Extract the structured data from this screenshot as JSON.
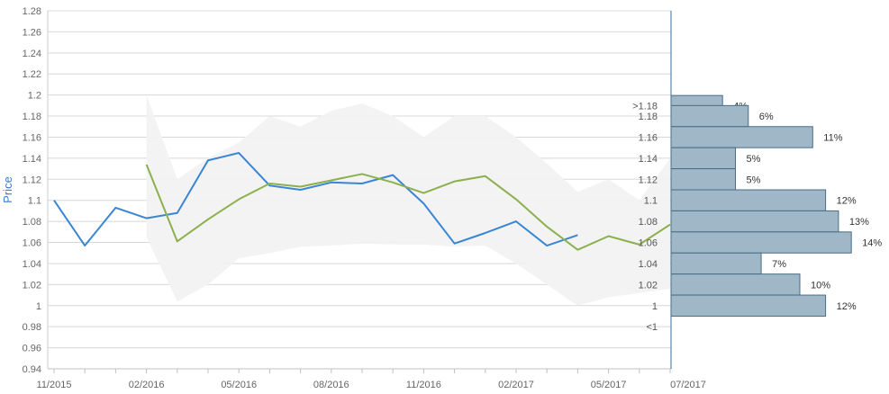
{
  "chart_data": {
    "type": "line",
    "ylabel": "Price",
    "ylim": [
      0.94,
      1.28
    ],
    "yticks": [
      "0.94",
      "0.96",
      "0.98",
      "1",
      "1.02",
      "1.04",
      "1.06",
      "1.08",
      "1.1",
      "1.12",
      "1.14",
      "1.16",
      "1.18",
      "1.2",
      "1.22",
      "1.24",
      "1.26",
      "1.28"
    ],
    "xticks": [
      "11/2015",
      "02/2016",
      "05/2016",
      "08/2016",
      "11/2016",
      "02/2017",
      "05/2017",
      "07/2017"
    ],
    "grid": true,
    "series": [
      {
        "color": "#3a86d4",
        "points": [
          [
            "2015-11",
            1.1
          ],
          [
            "2015-12",
            1.057
          ],
          [
            "2016-01",
            1.093
          ],
          [
            "2016-02",
            1.083
          ],
          [
            "2016-03",
            1.088
          ],
          [
            "2016-04",
            1.138
          ],
          [
            "2016-05",
            1.145
          ],
          [
            "2016-06",
            1.114
          ],
          [
            "2016-07",
            1.11
          ],
          [
            "2016-08",
            1.117
          ],
          [
            "2016-09",
            1.116
          ],
          [
            "2016-10",
            1.124
          ],
          [
            "2016-11",
            1.097
          ],
          [
            "2016-12",
            1.059
          ],
          [
            "2017-01",
            1.069
          ],
          [
            "2017-02",
            1.08
          ],
          [
            "2017-03",
            1.057
          ],
          [
            "2017-04",
            1.067
          ]
        ]
      },
      {
        "color": "#8cb04e",
        "points": [
          [
            "2016-02",
            1.134
          ],
          [
            "2016-03",
            1.061
          ],
          [
            "2016-04",
            1.082
          ],
          [
            "2016-05",
            1.101
          ],
          [
            "2016-06",
            1.116
          ],
          [
            "2016-07",
            1.113
          ],
          [
            "2016-08",
            1.119
          ],
          [
            "2016-09",
            1.125
          ],
          [
            "2016-10",
            1.117
          ],
          [
            "2016-11",
            1.107
          ],
          [
            "2016-12",
            1.118
          ],
          [
            "2017-01",
            1.123
          ],
          [
            "2017-02",
            1.101
          ],
          [
            "2017-03",
            1.075
          ],
          [
            "2017-04",
            1.053
          ],
          [
            "2017-05",
            1.066
          ],
          [
            "2017-06",
            1.058
          ],
          [
            "2017-07",
            1.077
          ]
        ]
      }
    ],
    "band": {
      "color": "#f2f2f2",
      "upper": [
        [
          "2016-02",
          1.2
        ],
        [
          "2016-03",
          1.12
        ],
        [
          "2016-04",
          1.14
        ],
        [
          "2016-05",
          1.155
        ],
        [
          "2016-06",
          1.18
        ],
        [
          "2016-07",
          1.17
        ],
        [
          "2016-08",
          1.185
        ],
        [
          "2016-09",
          1.192
        ],
        [
          "2016-10",
          1.18
        ],
        [
          "2016-11",
          1.16
        ],
        [
          "2016-12",
          1.18
        ],
        [
          "2017-01",
          1.18
        ],
        [
          "2017-02",
          1.16
        ],
        [
          "2017-03",
          1.135
        ],
        [
          "2017-04",
          1.108
        ],
        [
          "2017-05",
          1.12
        ],
        [
          "2017-06",
          1.1
        ],
        [
          "2017-07",
          1.14
        ]
      ],
      "lower": [
        [
          "2016-02",
          1.065
        ],
        [
          "2016-03",
          1.004
        ],
        [
          "2016-04",
          1.02
        ],
        [
          "2016-05",
          1.045
        ],
        [
          "2016-06",
          1.05
        ],
        [
          "2016-07",
          1.056
        ],
        [
          "2016-08",
          1.057
        ],
        [
          "2016-09",
          1.059
        ],
        [
          "2016-10",
          1.058
        ],
        [
          "2016-11",
          1.058
        ],
        [
          "2016-12",
          1.056
        ],
        [
          "2017-01",
          1.057
        ],
        [
          "2017-02",
          1.04
        ],
        [
          "2017-03",
          1.02
        ],
        [
          "2017-04",
          1.0
        ],
        [
          "2017-05",
          1.008
        ],
        [
          "2017-06",
          1.012
        ],
        [
          "2017-07",
          1.016
        ]
      ]
    },
    "histogram": {
      "color": "#9fb7c6",
      "bins": [
        {
          "label": ">1.18",
          "percent": 4,
          "display": "4%"
        },
        {
          "label": "1.18",
          "percent": 6,
          "display": "6%"
        },
        {
          "label": "1.16",
          "percent": 11,
          "display": "11%"
        },
        {
          "label": "1.14",
          "percent": 5,
          "display": "5%"
        },
        {
          "label": "1.12",
          "percent": 5,
          "display": "5%"
        },
        {
          "label": "1.1",
          "percent": 12,
          "display": "12%"
        },
        {
          "label": "1.08",
          "percent": 13,
          "display": "13%"
        },
        {
          "label": "1.06",
          "percent": 14,
          "display": "14%"
        },
        {
          "label": "1.04",
          "percent": 7,
          "display": "7%"
        },
        {
          "label": "1.02",
          "percent": 10,
          "display": "10%"
        },
        {
          "label": "1",
          "percent": 12,
          "display": "12%"
        },
        {
          "label": "<1",
          "percent": null,
          "display": ""
        }
      ]
    }
  }
}
